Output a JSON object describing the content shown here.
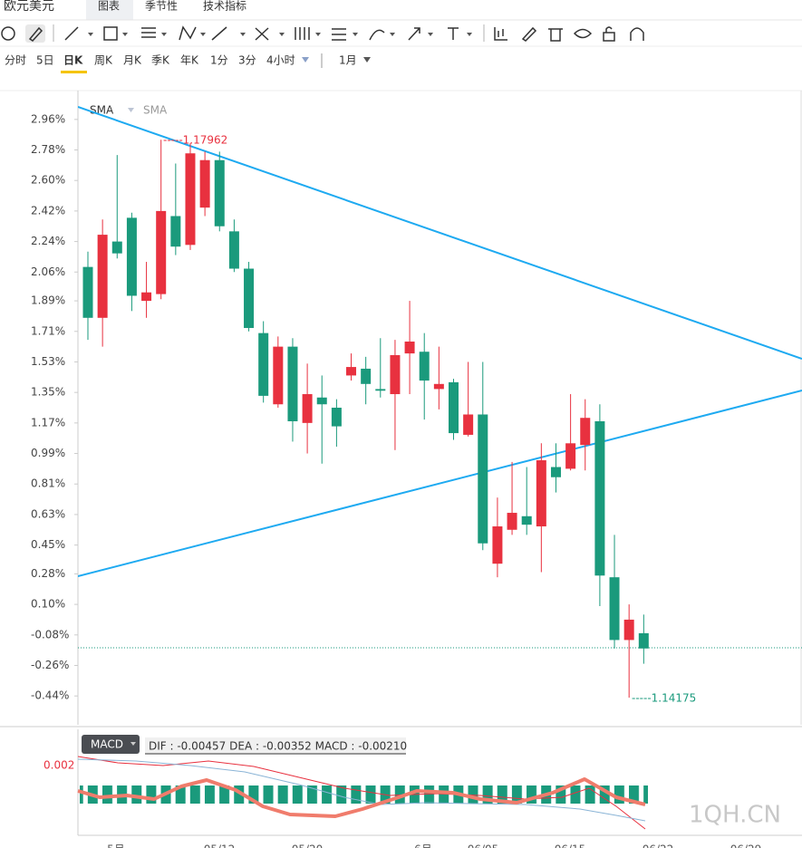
{
  "header": {
    "title": "欧元美元",
    "tabs": [
      "图表",
      "季节性",
      "技术指标"
    ]
  },
  "periods": [
    "分时",
    "5日",
    "日K",
    "周K",
    "月K",
    "季K",
    "年K",
    "1分",
    "3分",
    "4小时"
  ],
  "range": "1月",
  "chart_data": {
    "type": "candlestick",
    "legend": [
      "SMA",
      "SMA"
    ],
    "ylim": [
      -0.61,
      3.13
    ],
    "yticks": [
      {
        "value": 2.96,
        "label": "2.96%"
      },
      {
        "value": 2.78,
        "label": "2.78%"
      },
      {
        "value": 2.6,
        "label": "2.60%"
      },
      {
        "value": 2.42,
        "label": "2.42%"
      },
      {
        "value": 2.24,
        "label": "2.24%"
      },
      {
        "value": 2.06,
        "label": "2.06%"
      },
      {
        "value": 1.89,
        "label": "1.89%"
      },
      {
        "value": 1.71,
        "label": "1.71%"
      },
      {
        "value": 1.53,
        "label": "1.53%"
      },
      {
        "value": 1.35,
        "label": "1.35%"
      },
      {
        "value": 1.17,
        "label": "1.17%"
      },
      {
        "value": 0.99,
        "label": "0.99%"
      },
      {
        "value": 0.81,
        "label": "0.81%"
      },
      {
        "value": 0.63,
        "label": "0.63%"
      },
      {
        "value": 0.45,
        "label": "0.45%"
      },
      {
        "value": 0.28,
        "label": "0.28%"
      },
      {
        "value": 0.1,
        "label": "0.10%"
      },
      {
        "value": -0.08,
        "label": "-0.08%"
      },
      {
        "value": -0.26,
        "label": "-0.26%"
      },
      {
        "value": -0.44,
        "label": "-0.44%"
      }
    ],
    "open": [
      2.09,
      1.79,
      2.24,
      2.38,
      1.89,
      1.93,
      2.39,
      2.22,
      2.44,
      2.72,
      2.3,
      2.08,
      1.7,
      1.28,
      1.62,
      1.17,
      1.32,
      1.26,
      1.45,
      1.49,
      1.37,
      1.34,
      1.58,
      1.59,
      1.37,
      1.41,
      1.1,
      1.22,
      0.34,
      0.54,
      0.62,
      0.56,
      0.91,
      0.9,
      1.04,
      1.18,
      0.26,
      -0.11,
      -0.07
    ],
    "high": [
      2.18,
      2.37,
      2.75,
      2.41,
      2.12,
      2.84,
      2.7,
      2.82,
      2.77,
      2.77,
      2.37,
      2.12,
      1.77,
      1.68,
      1.67,
      1.52,
      1.45,
      1.31,
      1.58,
      1.56,
      1.67,
      1.66,
      1.89,
      1.7,
      1.62,
      1.43,
      1.53,
      1.53,
      0.73,
      0.94,
      0.91,
      1.05,
      1.05,
      1.34,
      1.31,
      1.28,
      0.51,
      0.1,
      0.04
    ],
    "low": [
      1.66,
      1.62,
      2.14,
      1.83,
      1.79,
      1.9,
      2.16,
      2.19,
      2.39,
      2.3,
      2.06,
      1.71,
      1.29,
      1.26,
      1.06,
      0.99,
      0.93,
      1.03,
      1.42,
      1.28,
      1.32,
      1.01,
      1.34,
      1.19,
      1.25,
      1.07,
      1.09,
      0.42,
      0.26,
      0.51,
      0.51,
      0.29,
      0.76,
      0.89,
      0.89,
      0.09,
      -0.16,
      -0.45,
      -0.25
    ],
    "close": [
      1.79,
      2.28,
      2.17,
      1.92,
      1.94,
      2.42,
      2.21,
      2.76,
      2.72,
      2.33,
      2.08,
      1.73,
      1.33,
      1.62,
      1.18,
      1.34,
      1.28,
      1.15,
      1.5,
      1.4,
      1.36,
      1.57,
      1.65,
      1.42,
      1.4,
      1.11,
      1.22,
      0.46,
      0.56,
      0.64,
      0.57,
      0.95,
      0.85,
      1.05,
      1.2,
      0.27,
      -0.11,
      0.01,
      -0.16
    ],
    "up_color": "#e8313f",
    "down_color": "#1a9a7c",
    "annotations": [
      "-----1.17962",
      "-----1.14175"
    ],
    "x_labels": [
      "5月",
      "05/12",
      "05/20",
      "6月",
      "06/05",
      "06/15",
      "06/22",
      "06/29"
    ]
  },
  "macd": {
    "label": "MACD",
    "readout": "DIF : -0.00457  DEA : -0.00352  MACD : -0.00210",
    "axis_label": "0.002"
  },
  "watermark": "1QH.CN"
}
